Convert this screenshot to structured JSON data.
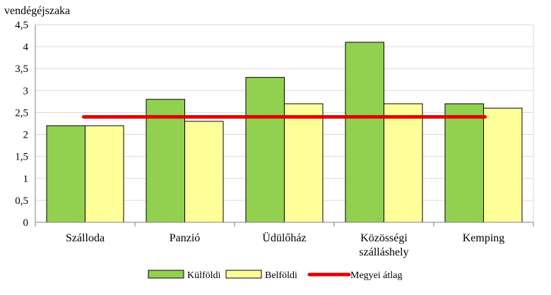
{
  "chart_data": {
    "type": "bar",
    "ylabel": "vendégéjszaka",
    "ylim": [
      0,
      4.5
    ],
    "yticks": [
      "0",
      "0,5",
      "1",
      "1,5",
      "2",
      "2,5",
      "3",
      "3,5",
      "4",
      "4,5"
    ],
    "categories": [
      [
        "Szálloda"
      ],
      [
        "Panzió"
      ],
      [
        "Üdülőház"
      ],
      [
        "Közösségi",
        "szálláshely"
      ],
      [
        "Kemping"
      ]
    ],
    "series": [
      {
        "name": "Külföldi",
        "values": [
          2.2,
          2.8,
          3.3,
          4.1,
          2.7
        ],
        "color": "#92d050"
      },
      {
        "name": "Belföldi",
        "values": [
          2.2,
          2.3,
          2.7,
          2.7,
          2.6
        ],
        "color": "#ffff99"
      }
    ],
    "reference_line": {
      "name": "Megyei átlag",
      "value": 2.4,
      "color": "#e00000"
    },
    "grid": true,
    "legend_position": "bottom"
  }
}
